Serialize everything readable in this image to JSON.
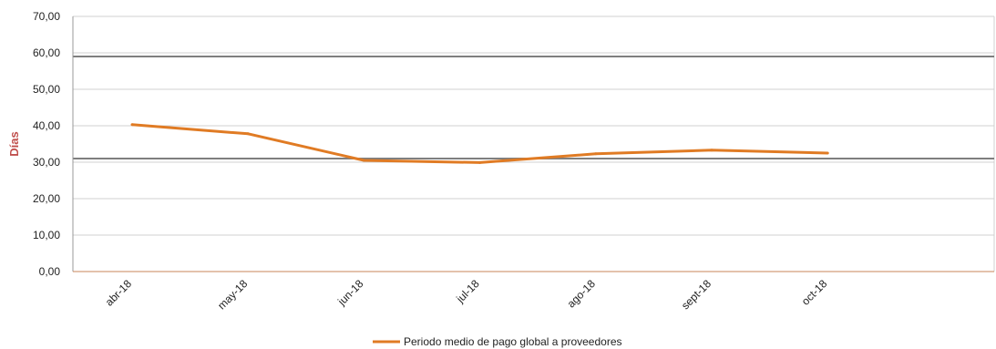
{
  "chart_data": {
    "type": "line",
    "title": "",
    "xlabel": "",
    "ylabel": "Días",
    "ylim": [
      0,
      70
    ],
    "y_ticks": [
      "0,00",
      "10,00",
      "20,00",
      "30,00",
      "40,00",
      "50,00",
      "60,00",
      "70,00"
    ],
    "categories": [
      "abr-18",
      "may-18",
      "jun-18",
      "jul-18",
      "ago-18",
      "sept-18",
      "oct-18"
    ],
    "series": [
      {
        "name": "Periodo medio de pago global a proveedores",
        "values": [
          40.3,
          37.8,
          30.5,
          29.9,
          32.3,
          33.3,
          32.5
        ],
        "color": "#e07b24"
      }
    ],
    "reference_lines": [
      59.0,
      31.0
    ],
    "reference_line_color": "#7f7f7f",
    "grid": true,
    "legend_position": "bottom"
  }
}
